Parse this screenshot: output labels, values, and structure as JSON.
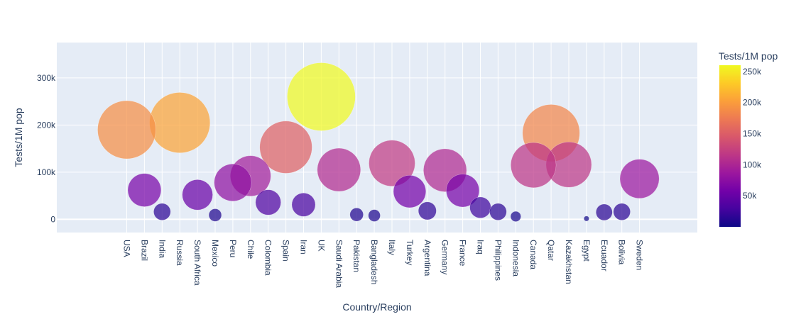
{
  "chart_data": {
    "type": "scatter",
    "subtype": "bubble",
    "xlabel": "Country/Region",
    "ylabel": "Tests/1M pop",
    "ylim": [
      -28000,
      375000
    ],
    "yticks": [
      0,
      100000,
      200000,
      300000
    ],
    "ytick_labels": [
      "0",
      "100k",
      "200k",
      "300k"
    ],
    "grid": true,
    "colorbar": {
      "title": "Tests/1M pop",
      "min": 0,
      "max": 260000,
      "ticks": [
        50000,
        100000,
        150000,
        200000,
        250000
      ],
      "tick_labels": [
        "50k",
        "100k",
        "150k",
        "200k",
        "250k"
      ],
      "colorscale": [
        "#0d0887",
        "#46039f",
        "#7201a8",
        "#9c179e",
        "#bd3786",
        "#d8576b",
        "#ed7953",
        "#fb9f3a",
        "#fdca26",
        "#f0f921"
      ]
    },
    "colors": {
      "plot_bg": "#e5ecf6",
      "grid": "#ffffff",
      "text": "#2a3f5f"
    },
    "points": [
      {
        "x": "USA",
        "y": 190000
      },
      {
        "x": "Brazil",
        "y": 62000
      },
      {
        "x": "India",
        "y": 16000
      },
      {
        "x": "Russia",
        "y": 205000
      },
      {
        "x": "South Africa",
        "y": 52000
      },
      {
        "x": "Mexico",
        "y": 9000
      },
      {
        "x": "Peru",
        "y": 78000
      },
      {
        "x": "Chile",
        "y": 92000
      },
      {
        "x": "Colombia",
        "y": 36000
      },
      {
        "x": "Spain",
        "y": 153000
      },
      {
        "x": "Iran",
        "y": 31000
      },
      {
        "x": "UK",
        "y": 260000
      },
      {
        "x": "Saudi Arabia",
        "y": 105000
      },
      {
        "x": "Pakistan",
        "y": 10000
      },
      {
        "x": "Bangladesh",
        "y": 8000
      },
      {
        "x": "Italy",
        "y": 119000
      },
      {
        "x": "Turkey",
        "y": 59000
      },
      {
        "x": "Argentina",
        "y": 18000
      },
      {
        "x": "Germany",
        "y": 104000
      },
      {
        "x": "France",
        "y": 61000
      },
      {
        "x": "Iraq",
        "y": 25000
      },
      {
        "x": "Philippines",
        "y": 16000
      },
      {
        "x": "Indonesia",
        "y": 6000
      },
      {
        "x": "Canada",
        "y": 115000
      },
      {
        "x": "Qatar",
        "y": 183000
      },
      {
        "x": "Kazakhstan",
        "y": 116000
      },
      {
        "x": "Egypt",
        "y": 1500
      },
      {
        "x": "Ecuador",
        "y": 15000
      },
      {
        "x": "Bolivia",
        "y": 16000
      },
      {
        "x": "Sweden",
        "y": 86000
      }
    ]
  }
}
